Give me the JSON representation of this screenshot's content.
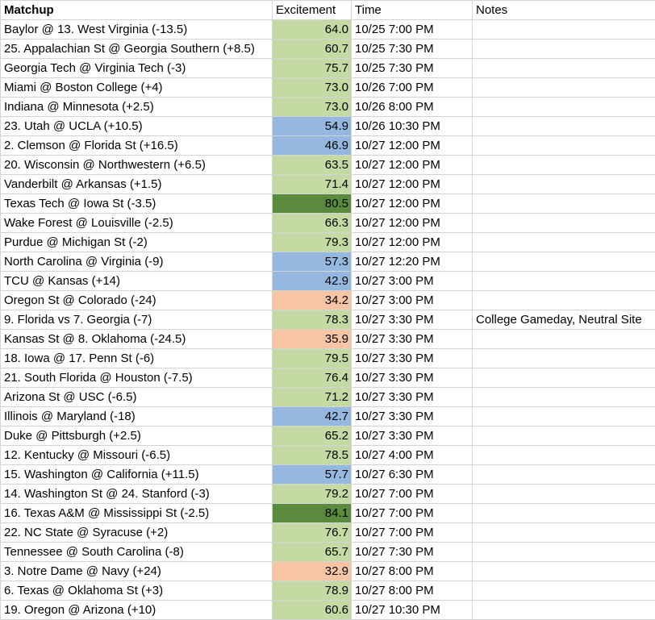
{
  "headers": {
    "matchup": "Matchup",
    "excitement": "Excitement",
    "time": "Time",
    "notes": "Notes"
  },
  "colors": {
    "green_light": "#c3dba3",
    "green_dark": "#5a8b3c",
    "blue": "#95b8e0",
    "orange": "#f7c5a3"
  },
  "rows": [
    {
      "matchup": "Baylor @ 13. West Virginia (-13.5)",
      "excitement": "64.0",
      "time": "10/25 7:00 PM",
      "notes": "",
      "color": "#c3dba3"
    },
    {
      "matchup": "25. Appalachian St @ Georgia Southern (+8.5)",
      "excitement": "60.7",
      "time": "10/25 7:30 PM",
      "notes": "",
      "color": "#c3dba3"
    },
    {
      "matchup": "Georgia Tech @ Virginia Tech (-3)",
      "excitement": "75.7",
      "time": "10/25 7:30 PM",
      "notes": "",
      "color": "#c3dba3"
    },
    {
      "matchup": "Miami @ Boston College (+4)",
      "excitement": "73.0",
      "time": "10/26 7:00 PM",
      "notes": "",
      "color": "#c3dba3"
    },
    {
      "matchup": "Indiana @ Minnesota (+2.5)",
      "excitement": "73.0",
      "time": "10/26 8:00 PM",
      "notes": "",
      "color": "#c3dba3"
    },
    {
      "matchup": "23. Utah @ UCLA (+10.5)",
      "excitement": "54.9",
      "time": "10/26 10:30 PM",
      "notes": "",
      "color": "#95b8e0"
    },
    {
      "matchup": "2. Clemson @ Florida St (+16.5)",
      "excitement": "46.9",
      "time": "10/27 12:00 PM",
      "notes": "",
      "color": "#95b8e0"
    },
    {
      "matchup": "20. Wisconsin @ Northwestern (+6.5)",
      "excitement": "63.5",
      "time": "10/27 12:00 PM",
      "notes": "",
      "color": "#c3dba3"
    },
    {
      "matchup": "Vanderbilt @ Arkansas (+1.5)",
      "excitement": "71.4",
      "time": "10/27 12:00 PM",
      "notes": "",
      "color": "#c3dba3"
    },
    {
      "matchup": "Texas Tech @ Iowa St (-3.5)",
      "excitement": "80.5",
      "time": "10/27 12:00 PM",
      "notes": "",
      "color": "#5a8b3c"
    },
    {
      "matchup": "Wake Forest @ Louisville (-2.5)",
      "excitement": "66.3",
      "time": "10/27 12:00 PM",
      "notes": "",
      "color": "#c3dba3"
    },
    {
      "matchup": "Purdue @ Michigan St (-2)",
      "excitement": "79.3",
      "time": "10/27 12:00 PM",
      "notes": "",
      "color": "#c3dba3"
    },
    {
      "matchup": "North Carolina @ Virginia (-9)",
      "excitement": "57.3",
      "time": "10/27 12:20 PM",
      "notes": "",
      "color": "#95b8e0"
    },
    {
      "matchup": "TCU @ Kansas (+14)",
      "excitement": "42.9",
      "time": "10/27 3:00 PM",
      "notes": "",
      "color": "#95b8e0"
    },
    {
      "matchup": "Oregon St @ Colorado (-24)",
      "excitement": "34.2",
      "time": "10/27 3:00 PM",
      "notes": "",
      "color": "#f7c5a3"
    },
    {
      "matchup": "9. Florida vs 7. Georgia (-7)",
      "excitement": "78.3",
      "time": "10/27 3:30 PM",
      "notes": "College Gameday, Neutral Site",
      "color": "#c3dba3"
    },
    {
      "matchup": "Kansas St @ 8. Oklahoma (-24.5)",
      "excitement": "35.9",
      "time": "10/27 3:30 PM",
      "notes": "",
      "color": "#f7c5a3"
    },
    {
      "matchup": "18. Iowa @ 17. Penn St (-6)",
      "excitement": "79.5",
      "time": "10/27 3:30 PM",
      "notes": "",
      "color": "#c3dba3"
    },
    {
      "matchup": "21. South Florida @ Houston (-7.5)",
      "excitement": "76.4",
      "time": "10/27 3:30 PM",
      "notes": "",
      "color": "#c3dba3"
    },
    {
      "matchup": "Arizona St @ USC (-6.5)",
      "excitement": "71.2",
      "time": "10/27 3:30 PM",
      "notes": "",
      "color": "#c3dba3"
    },
    {
      "matchup": "Illinois @ Maryland (-18)",
      "excitement": "42.7",
      "time": "10/27 3:30 PM",
      "notes": "",
      "color": "#95b8e0"
    },
    {
      "matchup": "Duke @ Pittsburgh (+2.5)",
      "excitement": "65.2",
      "time": "10/27 3:30 PM",
      "notes": "",
      "color": "#c3dba3"
    },
    {
      "matchup": "12. Kentucky @ Missouri (-6.5)",
      "excitement": "78.5",
      "time": "10/27 4:00 PM",
      "notes": "",
      "color": "#c3dba3"
    },
    {
      "matchup": "15. Washington @ California (+11.5)",
      "excitement": "57.7",
      "time": "10/27 6:30 PM",
      "notes": "",
      "color": "#95b8e0"
    },
    {
      "matchup": "14. Washington St @ 24. Stanford (-3)",
      "excitement": "79.2",
      "time": "10/27 7:00 PM",
      "notes": "",
      "color": "#c3dba3"
    },
    {
      "matchup": "16. Texas A&M @ Mississippi St (-2.5)",
      "excitement": "84.1",
      "time": "10/27 7:00 PM",
      "notes": "",
      "color": "#5a8b3c"
    },
    {
      "matchup": "22. NC State @ Syracuse (+2)",
      "excitement": "76.7",
      "time": "10/27 7:00 PM",
      "notes": "",
      "color": "#c3dba3"
    },
    {
      "matchup": "Tennessee @ South Carolina (-8)",
      "excitement": "65.7",
      "time": "10/27 7:30 PM",
      "notes": "",
      "color": "#c3dba3"
    },
    {
      "matchup": "3. Notre Dame @ Navy (+24)",
      "excitement": "32.9",
      "time": "10/27 8:00 PM",
      "notes": "",
      "color": "#f7c5a3"
    },
    {
      "matchup": "6. Texas @ Oklahoma St (+3)",
      "excitement": "78.9",
      "time": "10/27 8:00 PM",
      "notes": "",
      "color": "#c3dba3"
    },
    {
      "matchup": "19. Oregon @ Arizona (+10)",
      "excitement": "60.6",
      "time": "10/27 10:30 PM",
      "notes": "",
      "color": "#c3dba3"
    }
  ]
}
